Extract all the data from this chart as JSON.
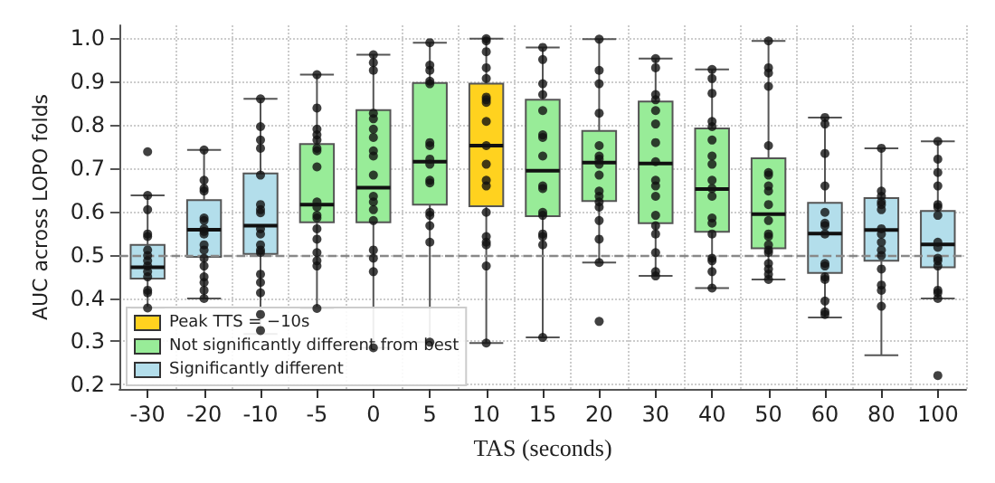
{
  "chart_data": {
    "type": "box",
    "xlabel": "TAS (seconds)",
    "ylabel": "AUC across LOPO folds",
    "categories": [
      "-30",
      "-20",
      "-10",
      "-5",
      "0",
      "5",
      "10",
      "15",
      "20",
      "30",
      "40",
      "50",
      "60",
      "80",
      "100"
    ],
    "ylim": [
      0.19,
      1.03
    ],
    "yticks": [
      0.2,
      0.3,
      0.4,
      0.5,
      0.6,
      0.7,
      0.8,
      0.9,
      {
        "value": 1,
        "label": "1.0"
      }
    ],
    "grid": true,
    "legend": "bottom left",
    "marker": "circle",
    "ref_lines": [
      {
        "axis": "y",
        "value": 0.5,
        "color": "#888888",
        "line_style": "dashed"
      }
    ],
    "series": [
      {
        "name": "Peak TTS = −10s",
        "color": "#ffd21f",
        "boxes": [
          null,
          null,
          null,
          null,
          null,
          null,
          {
            "low": 0.296,
            "q1": 0.612,
            "median": 0.752,
            "q3": 0.895,
            "high": 0.999
          },
          null,
          null,
          null,
          null,
          null,
          null,
          null,
          null
        ]
      },
      {
        "name": "Not significantly different from best",
        "color": "#98ec98",
        "boxes": [
          null,
          null,
          null,
          {
            "low": 0.376,
            "q1": 0.575,
            "median": 0.616,
            "q3": 0.756,
            "high": 0.916
          },
          {
            "low": 0.285,
            "q1": 0.575,
            "median": 0.655,
            "q3": 0.834,
            "high": 0.962
          },
          {
            "low": 0.298,
            "q1": 0.616,
            "median": 0.715,
            "q3": 0.897,
            "high": 0.99
          },
          null,
          {
            "low": 0.309,
            "q1": 0.589,
            "median": 0.694,
            "q3": 0.858,
            "high": 0.979
          },
          {
            "low": 0.482,
            "q1": 0.624,
            "median": 0.713,
            "q3": 0.786,
            "high": 0.998
          },
          {
            "low": 0.451,
            "q1": 0.573,
            "median": 0.711,
            "q3": 0.854,
            "high": 0.953
          },
          {
            "low": 0.423,
            "q1": 0.553,
            "median": 0.652,
            "q3": 0.792,
            "high": 0.928
          },
          {
            "low": 0.443,
            "q1": 0.515,
            "median": 0.594,
            "q3": 0.723,
            "high": 0.994
          },
          null,
          null,
          null
        ]
      },
      {
        "name": "Significantly different",
        "color": "#b3deeb",
        "boxes": [
          {
            "low": 0.377,
            "q1": 0.445,
            "median": 0.471,
            "q3": 0.523,
            "high": 0.637
          },
          {
            "low": 0.399,
            "q1": 0.495,
            "median": 0.558,
            "q3": 0.626,
            "high": 0.742
          },
          {
            "low": 0.317,
            "q1": 0.502,
            "median": 0.567,
            "q3": 0.688,
            "high": 0.86
          },
          null,
          null,
          null,
          null,
          null,
          null,
          null,
          null,
          null,
          {
            "low": 0.355,
            "q1": 0.458,
            "median": 0.549,
            "q3": 0.62,
            "high": 0.817
          },
          {
            "low": 0.268,
            "q1": 0.486,
            "median": 0.557,
            "q3": 0.631,
            "high": 0.746
          },
          {
            "low": 0.399,
            "q1": 0.471,
            "median": 0.524,
            "q3": 0.601,
            "high": 0.762
          }
        ]
      },
      {
        "type": "scatter",
        "color": "#111111",
        "x": [
          "-30",
          "-30",
          "-30",
          "-30",
          "-30",
          "-30",
          "-30",
          "-30",
          "-30",
          "-30",
          "-30",
          "-30",
          "-30",
          "-30",
          "-20",
          "-20",
          "-20",
          "-20",
          "-20",
          "-20",
          "-20",
          "-20",
          "-20",
          "-20",
          "-20",
          "-20",
          "-20",
          "-20",
          "-20",
          "-20",
          "-20",
          "-10",
          "-10",
          "-10",
          "-10",
          "-10",
          "-10",
          "-10",
          "-10",
          "-10",
          "-10",
          "-10",
          "-10",
          "-10",
          "-10",
          "-10",
          "-10",
          "-10",
          "-10",
          "-5",
          "-5",
          "-5",
          "-5",
          "-5",
          "-5",
          "-5",
          "-5",
          "-5",
          "-5",
          "-5",
          "-5",
          "-5",
          "-5",
          "-5",
          "-5",
          "-5",
          "-5",
          "0",
          "0",
          "0",
          "0",
          "0",
          "0",
          "0",
          "0",
          "0",
          "0",
          "0",
          "0",
          "0",
          "0",
          "0",
          "0",
          "0",
          "0",
          "5",
          "5",
          "5",
          "5",
          "5",
          "5",
          "5",
          "5",
          "5",
          "5",
          "5",
          "5",
          "5",
          "5",
          "5",
          "5",
          "10",
          "10",
          "10",
          "10",
          "10",
          "10",
          "10",
          "10",
          "10",
          "10",
          "10",
          "10",
          "10",
          "10",
          "10",
          "10",
          "10",
          "10",
          "10",
          "15",
          "15",
          "15",
          "15",
          "15",
          "15",
          "15",
          "15",
          "15",
          "15",
          "15",
          "15",
          "15",
          "15",
          "15",
          "15",
          "20",
          "20",
          "20",
          "20",
          "20",
          "20",
          "20",
          "20",
          "20",
          "20",
          "20",
          "20",
          "20",
          "20",
          "20",
          "20",
          "20",
          "30",
          "30",
          "30",
          "30",
          "30",
          "30",
          "30",
          "30",
          "30",
          "30",
          "30",
          "30",
          "30",
          "30",
          "30",
          "30",
          "30",
          "40",
          "40",
          "40",
          "40",
          "40",
          "40",
          "40",
          "40",
          "40",
          "40",
          "40",
          "40",
          "40",
          "40",
          "40",
          "40",
          "40",
          "40",
          "50",
          "50",
          "50",
          "50",
          "50",
          "50",
          "50",
          "50",
          "50",
          "50",
          "50",
          "50",
          "50",
          "50",
          "50",
          "50",
          "50",
          "50",
          "50",
          "50",
          "60",
          "60",
          "60",
          "60",
          "60",
          "60",
          "60",
          "60",
          "60",
          "60",
          "60",
          "60",
          "60",
          "60",
          "60",
          "80",
          "80",
          "80",
          "80",
          "80",
          "80",
          "80",
          "80",
          "80",
          "80",
          "80",
          "80",
          "80",
          "80",
          "80",
          "100",
          "100",
          "100",
          "100",
          "100",
          "100",
          "100",
          "100",
          "100",
          "100",
          "100",
          "100",
          "100",
          "100",
          "100",
          "100"
        ],
        "values": [
          0.637,
          0.604,
          0.548,
          0.542,
          0.511,
          0.498,
          0.486,
          0.474,
          0.461,
          0.449,
          0.418,
          0.412,
          0.377,
          0.738,
          0.742,
          0.672,
          0.653,
          0.647,
          0.585,
          0.579,
          0.56,
          0.554,
          0.548,
          0.523,
          0.511,
          0.492,
          0.474,
          0.449,
          0.436,
          0.418,
          0.399,
          0.86,
          0.796,
          0.765,
          0.746,
          0.684,
          0.616,
          0.604,
          0.597,
          0.56,
          0.548,
          0.523,
          0.511,
          0.505,
          0.455,
          0.436,
          0.412,
          0.362,
          0.325,
          0.916,
          0.839,
          0.79,
          0.777,
          0.765,
          0.746,
          0.74,
          0.703,
          0.622,
          0.61,
          0.591,
          0.585,
          0.56,
          0.536,
          0.505,
          0.486,
          0.474,
          0.376,
          0.962,
          0.944,
          0.926,
          0.827,
          0.814,
          0.79,
          0.771,
          0.74,
          0.728,
          0.684,
          0.635,
          0.622,
          0.604,
          0.579,
          0.511,
          0.492,
          0.461,
          0.285,
          0.99,
          0.938,
          0.926,
          0.901,
          0.895,
          0.759,
          0.752,
          0.721,
          0.709,
          0.672,
          0.666,
          0.598,
          0.591,
          0.567,
          0.529,
          0.298,
          0.999,
          0.994,
          0.969,
          0.932,
          0.907,
          0.864,
          0.858,
          0.852,
          0.808,
          0.752,
          0.709,
          0.672,
          0.659,
          0.598,
          0.542,
          0.529,
          0.523,
          0.474,
          0.296,
          0.979,
          0.951,
          0.895,
          0.87,
          0.833,
          0.777,
          0.771,
          0.728,
          0.659,
          0.653,
          0.598,
          0.591,
          0.548,
          0.542,
          0.523,
          0.309,
          0.998,
          0.926,
          0.895,
          0.827,
          0.752,
          0.728,
          0.721,
          0.709,
          0.684,
          0.647,
          0.635,
          0.622,
          0.61,
          0.579,
          0.536,
          0.482,
          0.346,
          0.953,
          0.932,
          0.87,
          0.858,
          0.833,
          0.802,
          0.759,
          0.715,
          0.672,
          0.659,
          0.635,
          0.591,
          0.567,
          0.548,
          0.505,
          0.461,
          0.451,
          0.928,
          0.907,
          0.873,
          0.808,
          0.796,
          0.765,
          0.728,
          0.709,
          0.672,
          0.653,
          0.635,
          0.585,
          0.573,
          0.548,
          0.492,
          0.486,
          0.461,
          0.423,
          0.994,
          0.932,
          0.92,
          0.889,
          0.752,
          0.69,
          0.684,
          0.659,
          0.647,
          0.616,
          0.579,
          0.548,
          0.542,
          0.523,
          0.511,
          0.505,
          0.48,
          0.467,
          0.455,
          0.443,
          0.817,
          0.802,
          0.734,
          0.659,
          0.598,
          0.573,
          0.567,
          0.548,
          0.48,
          0.474,
          0.449,
          0.443,
          0.393,
          0.368,
          0.362,
          0.746,
          0.647,
          0.635,
          0.622,
          0.616,
          0.604,
          0.56,
          0.548,
          0.529,
          0.511,
          0.498,
          0.467,
          0.43,
          0.418,
          0.381,
          0.762,
          0.721,
          0.69,
          0.659,
          0.616,
          0.61,
          0.591,
          0.529,
          0.517,
          0.492,
          0.486,
          0.474,
          0.418,
          0.412,
          0.399,
          0.221
        ]
      }
    ]
  }
}
